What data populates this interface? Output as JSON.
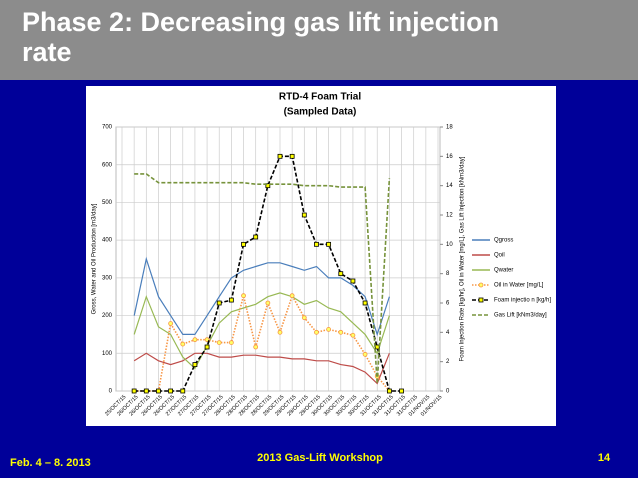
{
  "slide": {
    "title": "Phase 2: Decreasing gas lift injection rate",
    "date": "Feb. 4 – 8. 2013",
    "event": "2013 Gas-Lift Workshop",
    "page": "14"
  },
  "chart_data": {
    "type": "line",
    "title": "RTD-4 Foam Trial",
    "subtitle": "(Sampled Data)",
    "y_label": "Gross, Water and Oil Production [m3/day]",
    "y2_label": "Foam Injection Rate [kg/hr], Oil in Water [mg/L], Gas Lift Injection [kNm3/day]",
    "categories": [
      "25/OCT/15",
      "26/OCT/15",
      "26/OCT/15",
      "26/OCT/15",
      "26/OCT/15",
      "27/OCT/15",
      "27/OCT/15",
      "27/OCT/15",
      "27/OCT/15",
      "28/OCT/15",
      "28/OCT/15",
      "28/OCT/15",
      "28/OCT/15",
      "29/OCT/15",
      "29/OCT/15",
      "29/OCT/15",
      "29/OCT/15",
      "30/OCT/15",
      "30/OCT/15",
      "30/OCT/15",
      "30/OCT/15",
      "31/OCT/15",
      "31/OCT/15",
      "31/OCT/15",
      "31/OCT/15",
      "01/NOV/15",
      "01/NOV/15"
    ],
    "ylim": [
      0,
      700
    ],
    "yticks": [
      0,
      100,
      200,
      300,
      400,
      500,
      600,
      700
    ],
    "y2lim": [
      0,
      18
    ],
    "y2ticks": [
      0,
      2,
      4,
      6,
      8,
      10,
      12,
      14,
      16,
      18
    ],
    "grid": true,
    "legend": "right",
    "series": [
      {
        "name": "Qgross",
        "color": "#4a7ebb",
        "style": "solid",
        "values": [
          null,
          200,
          350,
          250,
          200,
          150,
          150,
          200,
          250,
          300,
          320,
          330,
          340,
          340,
          330,
          320,
          330,
          300,
          300,
          280,
          250,
          150,
          250,
          null,
          null,
          null,
          null
        ]
      },
      {
        "name": "Qoil",
        "color": "#be4b48",
        "style": "solid",
        "values": [
          null,
          80,
          100,
          80,
          70,
          80,
          100,
          100,
          90,
          90,
          95,
          95,
          90,
          90,
          85,
          85,
          80,
          80,
          70,
          65,
          50,
          20,
          100,
          null,
          null,
          null,
          null
        ]
      },
      {
        "name": "Qwater",
        "color": "#98b954",
        "style": "solid",
        "values": [
          null,
          150,
          250,
          170,
          150,
          90,
          60,
          120,
          180,
          210,
          220,
          230,
          250,
          260,
          250,
          230,
          240,
          220,
          210,
          180,
          150,
          100,
          200,
          null,
          null,
          null,
          null
        ]
      },
      {
        "name": "Oil in Water [mg/L]",
        "color": "#f79646",
        "style": "dotted",
        "marker": "circle",
        "axis": "y2",
        "values": [
          null,
          0,
          0,
          0,
          4.6,
          3.2,
          3.5,
          3.5,
          3.3,
          3.3,
          6.5,
          3,
          6,
          4,
          6.5,
          5,
          4,
          4.2,
          4,
          3.8,
          2.5,
          1,
          0,
          null,
          null,
          null,
          null
        ]
      },
      {
        "name": "Foam injectio n [kg/h]",
        "color": "#000000",
        "style": "dashed",
        "marker": "square",
        "axis": "y2",
        "values": [
          null,
          0,
          0,
          0,
          0,
          0,
          1.8,
          3,
          6,
          6.2,
          10,
          10.5,
          14,
          16,
          16,
          12,
          10,
          10,
          8,
          7.5,
          6,
          3,
          0,
          0,
          null,
          null,
          null
        ]
      },
      {
        "name": "Gas Lift [kNm3/day]",
        "color": "#77933c",
        "style": "dashed",
        "axis": "y2",
        "values": [
          null,
          14.8,
          14.8,
          14.2,
          14.2,
          14.2,
          14.2,
          14.2,
          14.2,
          14.2,
          14.2,
          14.1,
          14.1,
          14.1,
          14.1,
          14.0,
          14.0,
          14.0,
          13.9,
          13.9,
          13.9,
          0.5,
          14.5,
          null,
          null,
          null,
          null
        ]
      }
    ]
  }
}
